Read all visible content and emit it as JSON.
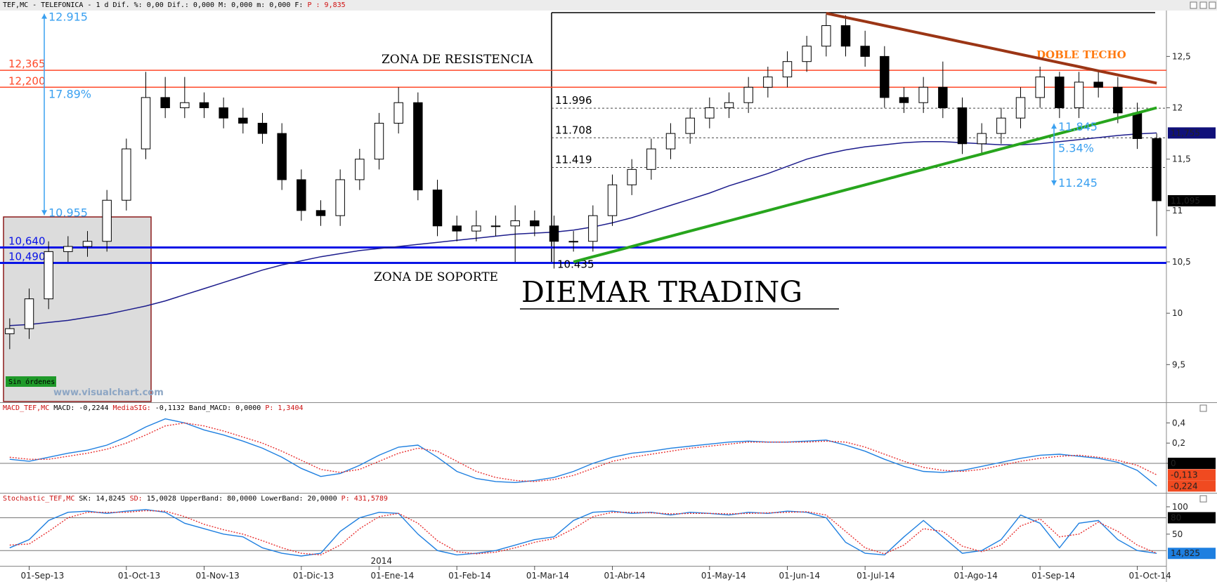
{
  "window": {
    "title": "TEF,MC - TELEFONICA -  1 d Dif. %: 0,00 Dif.: 0,000 M: 0,000 m: 0,000 F:",
    "price": "P : 9,835"
  },
  "chart_data": [
    {
      "type": "candlestick",
      "categories": [
        null,
        "01-Sep-13",
        null,
        null,
        null,
        null,
        "01-Oct-13",
        null,
        null,
        null,
        "01-Nov-13",
        null,
        null,
        null,
        null,
        "01-Dic-13",
        null,
        null,
        null,
        "01-Ene-14",
        null,
        null,
        null,
        "01-Feb-14",
        null,
        null,
        null,
        "01-Mar-14",
        null,
        null,
        null,
        "01-Abr-14",
        null,
        null,
        null,
        null,
        "01-May-14",
        null,
        null,
        null,
        "01-Jun-14",
        null,
        null,
        null,
        "01-Jul-14",
        null,
        null,
        null,
        null,
        "01-Ago-14",
        null,
        null,
        null,
        "01-Sep-14",
        null,
        null,
        null,
        null,
        "01-Oct-14",
        null
      ],
      "year_label": "2014",
      "open": [
        9.8,
        9.85,
        10.14,
        10.6,
        10.65,
        10.7,
        11.1,
        11.6,
        12.1,
        12.0,
        12.05,
        12.0,
        11.9,
        11.85,
        11.75,
        11.3,
        11.0,
        10.95,
        11.3,
        11.5,
        11.85,
        12.05,
        11.2,
        10.85,
        10.8,
        10.85,
        10.85,
        10.9,
        10.85,
        10.7,
        10.7,
        10.95,
        11.25,
        11.4,
        11.6,
        11.75,
        11.9,
        12.0,
        12.05,
        12.2,
        12.3,
        12.45,
        12.6,
        12.8,
        12.6,
        12.5,
        12.1,
        12.05,
        12.2,
        12.0,
        11.65,
        11.75,
        11.9,
        12.1,
        12.3,
        12.0,
        12.25,
        12.2,
        11.95,
        11.7
      ],
      "high": [
        9.95,
        10.24,
        10.7,
        10.75,
        10.8,
        11.2,
        11.7,
        12.35,
        12.3,
        12.3,
        12.15,
        12.1,
        12.0,
        11.95,
        11.85,
        11.4,
        11.1,
        11.4,
        11.6,
        11.95,
        12.2,
        12.15,
        11.3,
        10.95,
        11.0,
        10.95,
        11.05,
        11.0,
        10.95,
        10.8,
        11.05,
        11.35,
        11.5,
        11.7,
        11.85,
        12.0,
        12.1,
        12.15,
        12.3,
        12.4,
        12.55,
        12.7,
        12.915,
        12.9,
        12.75,
        12.6,
        12.2,
        12.3,
        12.45,
        12.1,
        11.85,
        12.0,
        12.2,
        12.4,
        12.35,
        12.35,
        12.35,
        12.3,
        12.05,
        11.75
      ],
      "low": [
        9.65,
        9.75,
        10.04,
        10.5,
        10.55,
        10.6,
        11.0,
        11.5,
        11.9,
        11.9,
        11.9,
        11.8,
        11.75,
        11.65,
        11.2,
        10.9,
        10.85,
        10.85,
        11.2,
        11.4,
        11.75,
        11.1,
        10.75,
        10.7,
        10.7,
        10.75,
        10.5,
        10.75,
        10.435,
        10.6,
        10.6,
        10.85,
        11.15,
        11.3,
        11.5,
        11.65,
        11.8,
        11.9,
        11.95,
        12.1,
        12.2,
        12.35,
        12.5,
        12.5,
        12.4,
        12.0,
        11.95,
        11.95,
        11.9,
        11.55,
        11.55,
        11.65,
        11.8,
        12.0,
        11.9,
        11.9,
        12.1,
        11.85,
        11.6,
        10.75
      ],
      "close": [
        9.85,
        10.14,
        10.6,
        10.65,
        10.7,
        11.1,
        11.6,
        12.1,
        12.0,
        12.05,
        12.0,
        11.9,
        11.85,
        11.75,
        11.3,
        11.0,
        10.95,
        11.3,
        11.5,
        11.85,
        12.05,
        11.2,
        10.85,
        10.8,
        10.85,
        10.85,
        10.9,
        10.85,
        10.7,
        10.7,
        10.95,
        11.25,
        11.4,
        11.6,
        11.75,
        11.9,
        12.0,
        12.05,
        12.2,
        12.3,
        12.45,
        12.6,
        12.8,
        12.6,
        12.5,
        12.1,
        12.05,
        12.2,
        12.0,
        11.65,
        11.75,
        11.9,
        12.1,
        12.3,
        12.0,
        12.25,
        12.2,
        11.95,
        11.7,
        11.095
      ],
      "last_label": "11,095",
      "up_color": "#ffffff",
      "down_color": "#000000",
      "ylim": [
        9.14,
        12.94
      ],
      "yticks": [
        {
          "value": 9.5,
          "label": "9,5"
        },
        10,
        {
          "value": 10.5,
          "label": "10,5"
        },
        11,
        {
          "value": 11.5,
          "label": "11,5"
        },
        12,
        {
          "value": 12.5,
          "label": "12,5"
        }
      ],
      "moving_average": {
        "color": "#1c1c8c",
        "last_label": "11,755",
        "values": [
          9.88,
          9.89,
          9.91,
          9.93,
          9.96,
          9.99,
          10.03,
          10.07,
          10.12,
          10.18,
          10.24,
          10.3,
          10.36,
          10.42,
          10.47,
          10.51,
          10.55,
          10.58,
          10.61,
          10.63,
          10.65,
          10.67,
          10.69,
          10.71,
          10.73,
          10.75,
          10.77,
          10.78,
          10.79,
          10.81,
          10.84,
          10.88,
          10.93,
          10.99,
          11.05,
          11.11,
          11.17,
          11.24,
          11.3,
          11.36,
          11.43,
          11.5,
          11.55,
          11.59,
          11.62,
          11.64,
          11.66,
          11.67,
          11.67,
          11.66,
          11.65,
          11.64,
          11.64,
          11.65,
          11.67,
          11.69,
          11.71,
          11.73,
          11.745,
          11.755
        ]
      },
      "levels": [
        {
          "value": 12.365,
          "label": "12,365",
          "color": "#ff4a2a"
        },
        {
          "value": 12.2,
          "label": "12,200",
          "color": "#ff4a2a"
        },
        {
          "value": 10.64,
          "label": "10,640",
          "color": "#0a14e6"
        },
        {
          "value": 10.49,
          "label": "10,490",
          "color": "#0a14e6"
        }
      ],
      "fib_levels": [
        11.996,
        11.708,
        11.419
      ],
      "support_low": 10.435,
      "trendlines": [
        {
          "color": "#9b3515",
          "values": [
            null,
            null,
            null,
            null,
            null,
            null,
            null,
            null,
            null,
            null,
            null,
            null,
            null,
            null,
            null,
            null,
            null,
            null,
            null,
            null,
            null,
            null,
            null,
            null,
            null,
            null,
            null,
            null,
            null,
            null,
            null,
            null,
            null,
            null,
            null,
            null,
            null,
            null,
            null,
            null,
            null,
            null,
            12.92,
            12.88,
            12.84,
            12.8,
            12.76,
            12.72,
            12.68,
            12.64,
            12.6,
            12.56,
            12.52,
            12.48,
            12.44,
            12.4,
            12.36,
            12.32,
            12.28,
            12.24
          ]
        },
        {
          "color": "#27a51d",
          "values": [
            null,
            null,
            null,
            null,
            null,
            null,
            null,
            null,
            null,
            null,
            null,
            null,
            null,
            null,
            null,
            null,
            null,
            null,
            null,
            null,
            null,
            null,
            null,
            null,
            null,
            null,
            null,
            null,
            null,
            10.5,
            10.55,
            10.6,
            10.65,
            10.7,
            10.75,
            10.8,
            10.85,
            10.9,
            10.95,
            11.0,
            11.05,
            11.1,
            11.15,
            11.2,
            11.25,
            11.3,
            11.35,
            11.4,
            11.45,
            11.5,
            11.55,
            11.6,
            11.65,
            11.7,
            11.75,
            11.8,
            11.85,
            11.9,
            11.95,
            12.0
          ]
        }
      ],
      "arrows": [
        {
          "from": 10.955,
          "to": 12.915,
          "change": {
            "value": 17.89,
            "label": "17.89%"
          },
          "color": "#3aa0f0"
        },
        {
          "from": 11.245,
          "to": 11.845,
          "change": {
            "value": 5.34,
            "label": "5.34%"
          },
          "color": "#3aa0f0"
        }
      ],
      "texts": {
        "resistance": "ZONA DE RESISTENCIA",
        "support": "ZONA DE SOPORTE",
        "brand": "DIEMAR TRADING",
        "pattern": "DOBLE TECHO",
        "status": "Sin órdenes",
        "watermark": "www.visualchart.com"
      }
    },
    {
      "type": "line",
      "header": [
        {
          "text": "MACD_TEF,MC",
          "color": "#cc1010"
        },
        {
          "text": " MACD: -0,2244",
          "color": "#000000"
        },
        {
          "text": " MediaSIG:",
          "color": "#cc1010"
        },
        {
          "text": " -0,1132 Band_MACD: 0,0000",
          "color": "#000000"
        },
        {
          "text": " P: 1,3404",
          "color": "#cc1010"
        }
      ],
      "series": [
        {
          "color": "#1e7fe0",
          "dashed": false,
          "values": [
            0.04,
            0.02,
            0.06,
            0.1,
            0.13,
            0.18,
            0.26,
            0.36,
            0.44,
            0.4,
            0.33,
            0.28,
            0.22,
            0.15,
            0.06,
            -0.05,
            -0.13,
            -0.1,
            -0.02,
            0.08,
            0.16,
            0.18,
            0.06,
            -0.08,
            -0.15,
            -0.18,
            -0.19,
            -0.17,
            -0.14,
            -0.08,
            0.0,
            0.06,
            0.1,
            0.12,
            0.15,
            0.17,
            0.19,
            0.21,
            0.22,
            0.21,
            0.21,
            0.22,
            0.23,
            0.18,
            0.12,
            0.04,
            -0.03,
            -0.08,
            -0.09,
            -0.07,
            -0.03,
            0.01,
            0.05,
            0.08,
            0.09,
            0.07,
            0.05,
            0.01,
            -0.07,
            -0.2244
          ]
        },
        {
          "color": "#e83030",
          "dashed": true,
          "values": [
            0.06,
            0.04,
            0.04,
            0.07,
            0.1,
            0.14,
            0.2,
            0.28,
            0.37,
            0.4,
            0.37,
            0.32,
            0.26,
            0.2,
            0.12,
            0.03,
            -0.06,
            -0.09,
            -0.06,
            0.02,
            0.1,
            0.15,
            0.12,
            0.02,
            -0.08,
            -0.14,
            -0.17,
            -0.18,
            -0.16,
            -0.12,
            -0.05,
            0.02,
            0.06,
            0.09,
            0.12,
            0.15,
            0.17,
            0.19,
            0.21,
            0.21,
            0.21,
            0.21,
            0.22,
            0.21,
            0.16,
            0.09,
            0.02,
            -0.04,
            -0.07,
            -0.08,
            -0.06,
            -0.02,
            0.02,
            0.05,
            0.07,
            0.08,
            0.06,
            0.03,
            -0.02,
            -0.1132
          ]
        }
      ],
      "ylim": [
        -0.285,
        0.59
      ],
      "yticks": [
        0,
        {
          "value": 0.2,
          "label": "0,2"
        },
        {
          "value": 0.4,
          "label": "0,4"
        }
      ],
      "bands": [
        0
      ],
      "markers": [
        {
          "value": 0,
          "color": "#000000"
        },
        {
          "value": -0.1132,
          "label": "-0,113",
          "color": "#f04a20"
        },
        {
          "value": -0.2244,
          "label": "-0,224",
          "color": "#f04a20"
        }
      ]
    },
    {
      "type": "line",
      "header": [
        {
          "text": "Stochastic_TEF,MC",
          "color": "#cc1010"
        },
        {
          "text": " SK: 14,8245",
          "color": "#000000"
        },
        {
          "text": " SD:",
          "color": "#cc1010"
        },
        {
          "text": " 15,0028 UpperBand: 80,0000 LowerBand: 20,0000",
          "color": "#000000"
        },
        {
          "text": " P: 431,5789",
          "color": "#cc1010"
        }
      ],
      "series": [
        {
          "color": "#1e7fe0",
          "dashed": false,
          "values": [
            25,
            40,
            75,
            90,
            92,
            88,
            92,
            95,
            90,
            70,
            60,
            50,
            45,
            25,
            15,
            10,
            15,
            55,
            80,
            90,
            88,
            50,
            20,
            12,
            15,
            20,
            30,
            40,
            45,
            75,
            90,
            92,
            88,
            90,
            85,
            90,
            88,
            85,
            90,
            88,
            92,
            90,
            80,
            35,
            15,
            12,
            45,
            75,
            45,
            15,
            20,
            40,
            85,
            70,
            25,
            70,
            75,
            40,
            20,
            14.8245
          ]
        },
        {
          "color": "#e83030",
          "dashed": true,
          "values": [
            30,
            32,
            55,
            80,
            90,
            90,
            90,
            93,
            92,
            82,
            68,
            58,
            50,
            38,
            25,
            15,
            12,
            30,
            60,
            82,
            88,
            70,
            38,
            18,
            14,
            17,
            25,
            35,
            42,
            60,
            82,
            90,
            90,
            89,
            87,
            88,
            88,
            87,
            88,
            89,
            90,
            91,
            85,
            55,
            25,
            14,
            30,
            60,
            55,
            28,
            18,
            30,
            65,
            78,
            45,
            50,
            72,
            55,
            30,
            15.0028
          ]
        }
      ],
      "ylim": [
        -8,
        123
      ],
      "yticks": [
        50,
        100
      ],
      "bands": [
        80,
        20
      ],
      "markers": [
        {
          "value": 80,
          "color": "#000000"
        },
        {
          "value": 14.8245,
          "label": "14,825",
          "color": "#1e7fe0"
        }
      ]
    }
  ]
}
